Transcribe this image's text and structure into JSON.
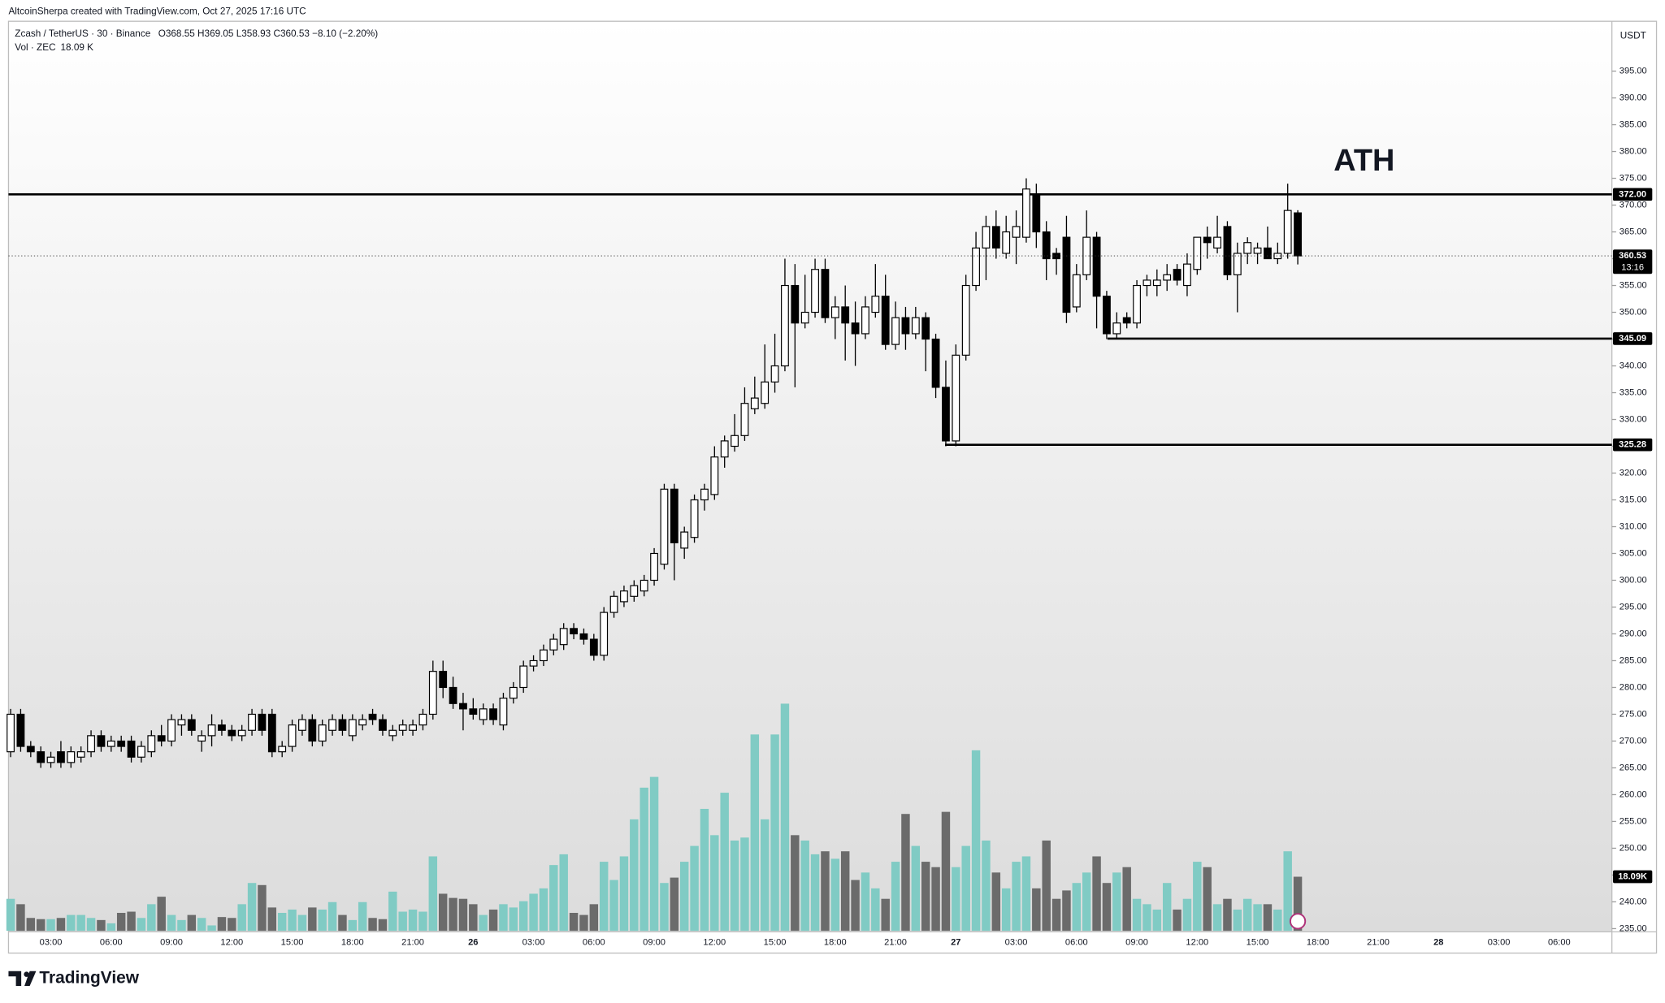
{
  "creator": "AltcoinSherpa created with TradingView.com, Oct 27, 2025 17:16 UTC",
  "brand": "TradingView",
  "chart_data": {
    "type": "candlestick",
    "title": "Zcash / TetherUS · 30 · Binance",
    "ohlc_text": "O368.55 H369.05 L358.93 C360.53 −8.10 (−2.20%)",
    "volume_label": "Vol · ZEC",
    "volume_value": "18.09 K",
    "currency": "USDT",
    "annotation": "ATH",
    "last_price_label": "360.53",
    "countdown": "13:16",
    "last_volume_label": "18.09K",
    "up_color": "#ffffff",
    "down_color": "#000000",
    "vol_up_color": "#80cbc4",
    "vol_down_color": "#6b6b6b",
    "ylim": [
      234.4,
      404.3
    ],
    "yticks": [
      {
        "value": 235,
        "label": "235.00"
      },
      {
        "value": 240,
        "label": "240.00"
      },
      {
        "value": 245,
        "label": "245.00"
      },
      {
        "value": 250,
        "label": "250.00"
      },
      {
        "value": 255,
        "label": "255.00"
      },
      {
        "value": 260,
        "label": "260.00"
      },
      {
        "value": 265,
        "label": "265.00"
      },
      {
        "value": 270,
        "label": "270.00"
      },
      {
        "value": 275,
        "label": "275.00"
      },
      {
        "value": 280,
        "label": "280.00"
      },
      {
        "value": 285,
        "label": "285.00"
      },
      {
        "value": 290,
        "label": "290.00"
      },
      {
        "value": 295,
        "label": "295.00"
      },
      {
        "value": 300,
        "label": "300.00"
      },
      {
        "value": 305,
        "label": "305.00"
      },
      {
        "value": 310,
        "label": "310.00"
      },
      {
        "value": 315,
        "label": "315.00"
      },
      {
        "value": 320,
        "label": "320.00"
      },
      {
        "value": 325,
        "label": "325.00"
      },
      {
        "value": 330,
        "label": "330.00"
      },
      {
        "value": 335,
        "label": "335.00"
      },
      {
        "value": 340,
        "label": "340.00"
      },
      {
        "value": 345,
        "label": "345.00"
      },
      {
        "value": 350,
        "label": "350.00"
      },
      {
        "value": 355,
        "label": "355.00"
      },
      {
        "value": 360,
        "label": "360.00"
      },
      {
        "value": 365,
        "label": "365.00"
      },
      {
        "value": 370,
        "label": "370.00"
      },
      {
        "value": 375,
        "label": "375.00"
      },
      {
        "value": 380,
        "label": "380.00"
      },
      {
        "value": 385,
        "label": "385.00"
      },
      {
        "value": 390,
        "label": "390.00"
      },
      {
        "value": 395,
        "label": "395.00"
      }
    ],
    "hlines": [
      {
        "value": 372,
        "label": "372.00"
      },
      {
        "value": 345.09,
        "label": "345.09"
      },
      {
        "value": 325.28,
        "label": "325.28"
      }
    ],
    "categories": [
      null,
      null,
      null,
      null,
      "03:00",
      null,
      null,
      null,
      null,
      null,
      "06:00",
      null,
      null,
      null,
      null,
      null,
      "09:00",
      null,
      null,
      null,
      null,
      null,
      "12:00",
      null,
      null,
      null,
      null,
      null,
      "15:00",
      null,
      null,
      null,
      null,
      null,
      "18:00",
      null,
      null,
      null,
      null,
      null,
      "21:00",
      null,
      null,
      null,
      null,
      null,
      "26",
      null,
      null,
      null,
      null,
      null,
      "03:00",
      null,
      null,
      null,
      null,
      null,
      "06:00",
      null,
      null,
      null,
      null,
      null,
      "09:00",
      null,
      null,
      null,
      null,
      null,
      "12:00",
      null,
      null,
      null,
      null,
      null,
      "15:00",
      null,
      null,
      null,
      null,
      null,
      "18:00",
      null,
      null,
      null,
      null,
      null,
      "21:00",
      null,
      null,
      null,
      null,
      null,
      "27",
      null,
      null,
      null,
      null,
      null,
      "03:00",
      null,
      null,
      null,
      null,
      null,
      "06:00",
      null,
      null,
      null,
      null,
      null,
      "09:00",
      null,
      null,
      null,
      null,
      null,
      "12:00",
      null,
      null,
      null,
      null,
      null,
      "15:00",
      null,
      null,
      null,
      null,
      null,
      "18:00",
      null,
      null,
      null,
      null,
      null,
      "21:00",
      null,
      null,
      null,
      null,
      null,
      "28",
      null,
      null,
      null,
      null,
      null,
      "03:00",
      null,
      null,
      null,
      null,
      null,
      "06:00"
    ],
    "open": [
      268,
      275,
      269,
      268,
      266,
      268,
      266,
      267,
      268,
      271,
      269,
      270,
      270,
      267,
      268,
      271,
      270,
      273,
      274,
      270,
      271,
      273,
      272,
      271,
      272,
      275,
      275,
      268,
      269,
      272,
      274,
      270,
      272,
      274,
      271,
      273,
      275,
      274,
      271,
      272,
      272,
      273,
      275,
      283,
      280,
      277,
      276,
      274,
      276,
      273,
      278,
      280,
      284,
      285,
      287,
      288,
      291,
      290,
      289,
      286,
      294,
      296,
      297,
      298,
      300,
      303,
      317,
      306,
      308,
      315,
      316,
      323,
      325,
      327,
      332,
      333,
      337,
      340,
      355,
      348,
      350,
      358,
      349,
      351,
      348,
      346,
      350,
      353,
      344,
      349,
      346,
      349,
      345,
      336,
      326,
      342,
      355,
      362,
      366,
      361,
      364,
      364,
      372,
      365,
      361,
      364,
      351,
      357,
      364,
      353,
      346,
      349,
      348,
      355,
      355,
      356,
      358,
      355,
      358,
      364,
      362,
      366,
      357,
      361,
      361,
      362,
      360,
      361,
      368.55,
      null,
      null,
      null,
      null,
      null,
      null,
      null,
      null,
      null,
      null,
      null,
      null,
      null,
      null,
      null,
      null,
      null,
      null,
      null,
      null,
      null,
      null,
      null,
      null,
      null,
      null
    ],
    "high": [
      276,
      276,
      270,
      269,
      268,
      270,
      269,
      269,
      272,
      272,
      271,
      271,
      271,
      270,
      272,
      273,
      275,
      275,
      275,
      272,
      275,
      274,
      273,
      273,
      276,
      276,
      276,
      270,
      274,
      275,
      275,
      274,
      275,
      275,
      275,
      275,
      276,
      275,
      273,
      274,
      274,
      276,
      285,
      285,
      282,
      279,
      278,
      277,
      277,
      279,
      281,
      285,
      286,
      288,
      290,
      292,
      292,
      291,
      290,
      295,
      298,
      299,
      300,
      301,
      306,
      318,
      318,
      310,
      316,
      318,
      325,
      327,
      331,
      336,
      338,
      344,
      346,
      360,
      359,
      357,
      360,
      360,
      353,
      355,
      352,
      353,
      359,
      357,
      352,
      351,
      351,
      350,
      346,
      341,
      344,
      357,
      365,
      368,
      369,
      368,
      369,
      375,
      374,
      367,
      362,
      368,
      359,
      369,
      365,
      354,
      350,
      350,
      356,
      357,
      358,
      359,
      359,
      361,
      364,
      366,
      368,
      367,
      363,
      364,
      363,
      366,
      363,
      374,
      369.05,
      null,
      null,
      null,
      null,
      null,
      null,
      null,
      null,
      null,
      null,
      null,
      null,
      null,
      null,
      null,
      null,
      null,
      null,
      null,
      null,
      null,
      null,
      null,
      null,
      null,
      null
    ],
    "low": [
      267,
      268,
      267,
      265,
      265,
      265,
      265,
      266,
      267,
      268,
      268,
      268,
      266,
      266,
      267,
      269,
      269,
      271,
      271,
      268,
      269,
      271,
      270,
      270,
      271,
      271,
      267,
      267,
      268,
      271,
      269,
      269,
      271,
      271,
      270,
      272,
      273,
      271,
      270,
      271,
      271,
      272,
      274,
      278,
      276,
      272,
      274,
      273,
      273,
      272,
      277,
      279,
      283,
      284,
      286,
      287,
      289,
      288,
      285,
      285,
      293,
      295,
      296,
      297,
      299,
      302,
      300,
      304,
      307,
      313,
      315,
      321,
      324,
      326,
      331,
      332,
      335,
      339,
      336,
      347,
      349,
      348,
      345,
      341,
      340,
      345,
      349,
      343,
      343,
      343,
      345,
      339,
      334,
      325,
      325,
      341,
      354,
      356,
      360,
      360,
      359,
      363,
      362,
      356,
      357,
      348,
      350,
      356,
      347,
      345,
      345,
      347,
      347,
      353,
      353,
      354,
      355,
      353,
      357,
      360,
      361,
      356,
      350,
      359,
      359,
      360,
      359,
      360,
      358.93,
      null,
      null,
      null,
      null,
      null,
      null,
      null,
      null,
      null,
      null,
      null,
      null,
      null,
      null,
      null,
      null,
      null,
      null,
      null,
      null,
      null,
      null,
      null,
      null,
      null,
      null
    ],
    "close": [
      275,
      269,
      268,
      266,
      267,
      266,
      268,
      268,
      271,
      269,
      270,
      269,
      267,
      269,
      271,
      270,
      274,
      274,
      272,
      271,
      273,
      272,
      271,
      272,
      275,
      272,
      268,
      269,
      273,
      274,
      270,
      273,
      274,
      272,
      274,
      274,
      274,
      272,
      272,
      273,
      273,
      275,
      283,
      280,
      277,
      276,
      275,
      276,
      274,
      278,
      280,
      284,
      285,
      287,
      289,
      291,
      290,
      289,
      286,
      294,
      297,
      298,
      299,
      300,
      305,
      317,
      307,
      309,
      315,
      317,
      323,
      326,
      327,
      333,
      334,
      337,
      340,
      355,
      348,
      350,
      358,
      349,
      351,
      348,
      346,
      351,
      353,
      344,
      349,
      346,
      349,
      345,
      336,
      326,
      342,
      355,
      362,
      366,
      362,
      365,
      366,
      373,
      365,
      360,
      360,
      350,
      357,
      364,
      353,
      346,
      348,
      348,
      355,
      356,
      356,
      357,
      356,
      359,
      364,
      363,
      364,
      357,
      361,
      363,
      362,
      360,
      361,
      369,
      360.53,
      null,
      null,
      null,
      null,
      null,
      null,
      null,
      null,
      null,
      null,
      null,
      null,
      null,
      null,
      null,
      null,
      null,
      null,
      null,
      null,
      null,
      null,
      null,
      null,
      null,
      null
    ],
    "volume": [
      10700,
      8900,
      4300,
      3900,
      3900,
      4300,
      5300,
      5300,
      4300,
      3600,
      2500,
      6000,
      6400,
      4300,
      8900,
      11400,
      5300,
      3600,
      5300,
      4300,
      1800,
      4600,
      4300,
      8900,
      16000,
      15300,
      7800,
      6000,
      7100,
      5300,
      7800,
      7100,
      9600,
      5300,
      3600,
      9600,
      4300,
      3900,
      13100,
      6400,
      7100,
      6400,
      24900,
      12400,
      11000,
      10700,
      8900,
      5300,
      7100,
      8900,
      7800,
      9900,
      12400,
      14200,
      22000,
      25600,
      6000,
      5300,
      8900,
      23100,
      17000,
      24900,
      37300,
      47900,
      51500,
      16000,
      17800,
      23100,
      28400,
      40800,
      32000,
      46200,
      30200,
      31200,
      65700,
      37300,
      65700,
      76000,
      32000,
      30200,
      25600,
      26600,
      24100,
      26600,
      17000,
      19500,
      14200,
      10700,
      23100,
      39100,
      28400,
      23100,
      21300,
      39800,
      21300,
      28400,
      60400,
      30200,
      19500,
      14200,
      23100,
      24900,
      14200,
      30200,
      10700,
      13500,
      16000,
      19500,
      24900,
      16000,
      19500,
      21300,
      10700,
      8900,
      7100,
      16000,
      7100,
      10700,
      23100,
      21300,
      8900,
      10700,
      7100,
      10700,
      8900,
      8900,
      7100,
      26600,
      18090,
      null,
      null,
      null,
      null,
      null,
      null,
      null,
      null,
      null,
      null,
      null,
      null,
      null,
      null,
      null,
      null,
      null,
      null,
      null,
      null,
      null,
      null,
      null,
      null,
      null,
      null
    ]
  }
}
